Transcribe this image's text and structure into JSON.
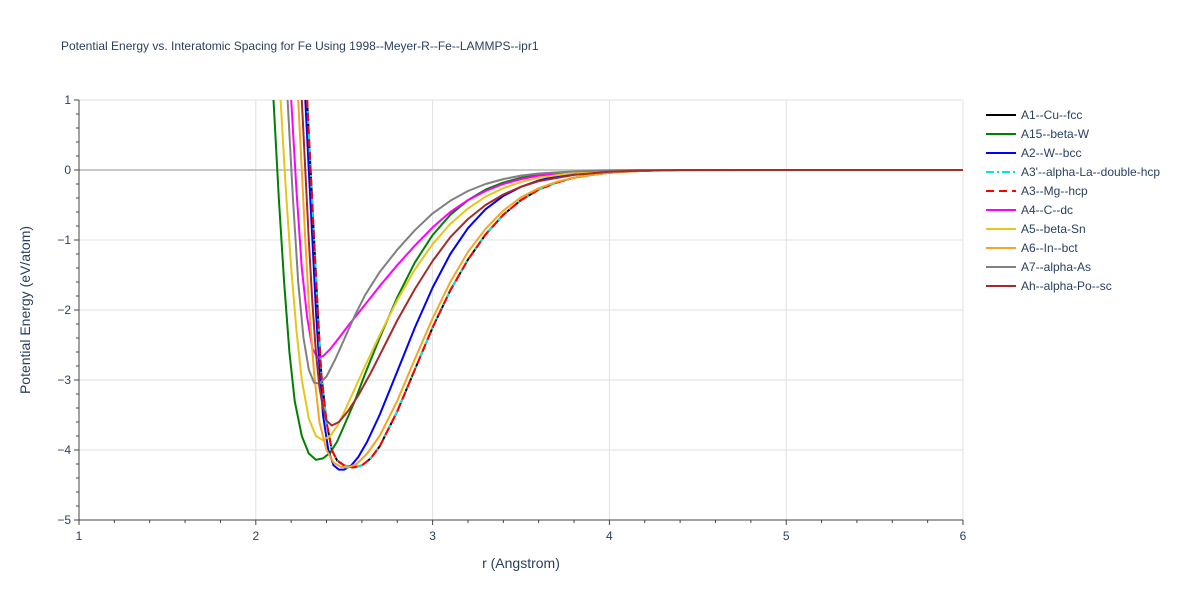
{
  "chart_data": {
    "type": "line",
    "title": "Potential Energy vs. Interatomic Spacing for Fe Using 1998--Meyer-R--Fe--LAMMPS--ipr1",
    "xlabel": "r (Angstrom)",
    "ylabel": "Potential Energy (eV/atom)",
    "xlim": [
      1,
      6
    ],
    "ylim": [
      -5,
      1
    ],
    "xticks": [
      1,
      2,
      3,
      4,
      5,
      6
    ],
    "yticks": [
      1,
      0,
      -1,
      -2,
      -3,
      -4,
      -5
    ],
    "xtick_labels": [
      "1",
      "2",
      "3",
      "4",
      "5",
      "6"
    ],
    "ytick_labels": [
      "1",
      "0",
      "−1",
      "−2",
      "−3",
      "−4",
      "−5"
    ],
    "grid": true,
    "legend_position": "right",
    "series": [
      {
        "name": "A1--Cu--fcc",
        "color": "#000000",
        "dash": "solid",
        "x": [
          2.29,
          2.31,
          2.33,
          2.35,
          2.37,
          2.4,
          2.43,
          2.46,
          2.5,
          2.55,
          2.6,
          2.65,
          2.7,
          2.8,
          2.9,
          3.0,
          3.1,
          3.2,
          3.3,
          3.4,
          3.5,
          3.6,
          3.7,
          3.8,
          3.9,
          4.0,
          4.1,
          4.2,
          4.3,
          4.4,
          4.5,
          5.0,
          6.0
        ],
        "y": [
          1.0,
          0.0,
          -1.0,
          -2.0,
          -2.9,
          -3.6,
          -4.0,
          -4.15,
          -4.22,
          -4.25,
          -4.22,
          -4.12,
          -3.95,
          -3.45,
          -2.85,
          -2.25,
          -1.72,
          -1.28,
          -0.92,
          -0.64,
          -0.43,
          -0.28,
          -0.18,
          -0.11,
          -0.07,
          -0.04,
          -0.02,
          -0.01,
          -0.004,
          0.0,
          0.0,
          0.0,
          0.0
        ]
      },
      {
        "name": "A15--beta-W",
        "color": "#008000",
        "dash": "solid",
        "x": [
          2.1,
          2.13,
          2.16,
          2.19,
          2.22,
          2.26,
          2.3,
          2.34,
          2.38,
          2.42,
          2.46,
          2.5,
          2.56,
          2.62,
          2.7,
          2.8,
          2.9,
          3.0,
          3.1,
          3.2,
          3.3,
          3.4,
          3.5,
          3.6,
          3.8,
          4.0,
          4.2,
          4.4,
          5.0,
          6.0
        ],
        "y": [
          1.0,
          -0.4,
          -1.6,
          -2.6,
          -3.3,
          -3.8,
          -4.05,
          -4.14,
          -4.12,
          -4.04,
          -3.88,
          -3.65,
          -3.3,
          -2.9,
          -2.4,
          -1.82,
          -1.32,
          -0.93,
          -0.64,
          -0.43,
          -0.28,
          -0.18,
          -0.11,
          -0.07,
          -0.025,
          -0.008,
          -0.002,
          0.0,
          0.0,
          0.0
        ]
      },
      {
        "name": "A2--W--bcc",
        "color": "#0000ff",
        "dash": "solid",
        "x": [
          2.28,
          2.3,
          2.32,
          2.34,
          2.36,
          2.38,
          2.41,
          2.44,
          2.47,
          2.5,
          2.54,
          2.58,
          2.63,
          2.7,
          2.8,
          2.9,
          3.0,
          3.1,
          3.2,
          3.3,
          3.4,
          3.5,
          3.6,
          3.7,
          3.8,
          3.9,
          4.0,
          4.2,
          4.4,
          5.0,
          6.0
        ],
        "y": [
          1.0,
          0.0,
          -1.0,
          -2.0,
          -2.8,
          -3.5,
          -4.0,
          -4.22,
          -4.28,
          -4.28,
          -4.22,
          -4.1,
          -3.88,
          -3.5,
          -2.88,
          -2.25,
          -1.68,
          -1.2,
          -0.83,
          -0.56,
          -0.37,
          -0.24,
          -0.15,
          -0.09,
          -0.055,
          -0.033,
          -0.02,
          -0.006,
          0.0,
          0.0,
          0.0
        ]
      },
      {
        "name": "A3'--alpha-La--double-hcp",
        "color": "#00e5e5",
        "dash": "dashdot",
        "x": [
          2.29,
          2.31,
          2.33,
          2.35,
          2.37,
          2.4,
          2.43,
          2.46,
          2.5,
          2.55,
          2.6,
          2.65,
          2.7,
          2.8,
          2.9,
          3.0,
          3.1,
          3.2,
          3.3,
          3.4,
          3.5,
          3.6,
          3.7,
          3.8,
          3.9,
          4.0,
          4.1,
          4.2,
          4.3,
          4.4,
          4.5,
          5.0,
          6.0
        ],
        "y": [
          1.0,
          0.0,
          -1.0,
          -2.0,
          -2.9,
          -3.6,
          -4.0,
          -4.15,
          -4.22,
          -4.25,
          -4.22,
          -4.12,
          -3.95,
          -3.45,
          -2.85,
          -2.25,
          -1.72,
          -1.28,
          -0.92,
          -0.64,
          -0.43,
          -0.28,
          -0.18,
          -0.11,
          -0.07,
          -0.04,
          -0.02,
          -0.01,
          -0.004,
          0.0,
          0.0,
          0.0,
          0.0
        ]
      },
      {
        "name": "A3--Mg--hcp",
        "color": "#ff0000",
        "dash": "dash",
        "x": [
          2.29,
          2.31,
          2.33,
          2.35,
          2.37,
          2.4,
          2.43,
          2.46,
          2.5,
          2.55,
          2.6,
          2.65,
          2.7,
          2.8,
          2.9,
          3.0,
          3.1,
          3.2,
          3.3,
          3.4,
          3.5,
          3.6,
          3.7,
          3.8,
          3.9,
          4.0,
          4.1,
          4.2,
          4.3,
          4.4,
          4.5,
          5.0,
          6.0
        ],
        "y": [
          1.0,
          0.0,
          -1.0,
          -2.0,
          -2.9,
          -3.6,
          -4.0,
          -4.15,
          -4.22,
          -4.25,
          -4.22,
          -4.12,
          -3.95,
          -3.45,
          -2.85,
          -2.25,
          -1.72,
          -1.28,
          -0.92,
          -0.64,
          -0.43,
          -0.28,
          -0.18,
          -0.11,
          -0.07,
          -0.04,
          -0.02,
          -0.01,
          -0.004,
          0.0,
          0.0,
          0.0,
          0.0
        ]
      },
      {
        "name": "A4--C--dc",
        "color": "#ff00ff",
        "dash": "solid",
        "x": [
          2.2,
          2.23,
          2.26,
          2.29,
          2.32,
          2.35,
          2.38,
          2.42,
          2.47,
          2.53,
          2.6,
          2.7,
          2.8,
          2.9,
          3.0,
          3.1,
          3.2,
          3.3,
          3.4,
          3.5,
          3.6,
          3.8,
          4.0,
          4.2,
          4.4,
          5.0,
          6.0
        ],
        "y": [
          1.0,
          -0.3,
          -1.4,
          -2.1,
          -2.55,
          -2.68,
          -2.66,
          -2.56,
          -2.4,
          -2.2,
          -1.98,
          -1.66,
          -1.36,
          -1.08,
          -0.82,
          -0.6,
          -0.43,
          -0.3,
          -0.2,
          -0.13,
          -0.08,
          -0.03,
          -0.01,
          -0.003,
          0.0,
          0.0,
          0.0
        ]
      },
      {
        "name": "A5--beta-Sn",
        "color": "#e6c619",
        "dash": "solid",
        "x": [
          2.14,
          2.17,
          2.2,
          2.23,
          2.26,
          2.3,
          2.34,
          2.38,
          2.42,
          2.46,
          2.5,
          2.55,
          2.6,
          2.7,
          2.8,
          2.9,
          3.0,
          3.1,
          3.2,
          3.3,
          3.4,
          3.5,
          3.6,
          3.8,
          4.0,
          4.2,
          4.4,
          5.0,
          6.0
        ],
        "y": [
          1.0,
          -0.3,
          -1.4,
          -2.3,
          -3.0,
          -3.55,
          -3.8,
          -3.86,
          -3.8,
          -3.66,
          -3.46,
          -3.18,
          -2.9,
          -2.36,
          -1.86,
          -1.42,
          -1.06,
          -0.77,
          -0.55,
          -0.38,
          -0.26,
          -0.17,
          -0.11,
          -0.04,
          -0.014,
          -0.004,
          0.0,
          0.0,
          0.0
        ]
      },
      {
        "name": "A6--In--bct",
        "color": "#f5a623",
        "dash": "solid",
        "x": [
          2.24,
          2.26,
          2.28,
          2.3,
          2.33,
          2.36,
          2.4,
          2.44,
          2.48,
          2.52,
          2.57,
          2.63,
          2.7,
          2.8,
          2.9,
          3.0,
          3.1,
          3.2,
          3.3,
          3.4,
          3.5,
          3.6,
          3.7,
          3.8,
          3.9,
          4.0,
          4.2,
          4.4,
          5.0,
          6.0
        ],
        "y": [
          1.0,
          0.0,
          -1.0,
          -1.9,
          -2.9,
          -3.6,
          -4.0,
          -4.18,
          -4.24,
          -4.25,
          -4.2,
          -4.05,
          -3.8,
          -3.3,
          -2.7,
          -2.12,
          -1.6,
          -1.17,
          -0.84,
          -0.58,
          -0.39,
          -0.26,
          -0.17,
          -0.11,
          -0.07,
          -0.04,
          -0.012,
          -0.003,
          0.0,
          0.0
        ]
      },
      {
        "name": "A7--alpha-As",
        "color": "#808080",
        "dash": "solid",
        "x": [
          2.18,
          2.21,
          2.24,
          2.27,
          2.3,
          2.33,
          2.36,
          2.4,
          2.45,
          2.5,
          2.56,
          2.62,
          2.7,
          2.8,
          2.9,
          3.0,
          3.1,
          3.2,
          3.3,
          3.4,
          3.5,
          3.6,
          3.8,
          4.0,
          4.2,
          4.4,
          5.0,
          6.0
        ],
        "y": [
          1.0,
          -0.4,
          -1.6,
          -2.4,
          -2.85,
          -3.04,
          -3.05,
          -2.95,
          -2.7,
          -2.42,
          -2.08,
          -1.78,
          -1.46,
          -1.14,
          -0.86,
          -0.62,
          -0.44,
          -0.3,
          -0.2,
          -0.13,
          -0.08,
          -0.05,
          -0.02,
          -0.006,
          -0.002,
          0.0,
          0.0,
          0.0
        ]
      },
      {
        "name": "Ah--alpha-Po--sc",
        "color": "#a52a2a",
        "dash": "solid",
        "x": [
          2.26,
          2.28,
          2.3,
          2.32,
          2.34,
          2.36,
          2.38,
          2.4,
          2.43,
          2.47,
          2.52,
          2.58,
          2.65,
          2.72,
          2.8,
          2.9,
          3.0,
          3.1,
          3.2,
          3.3,
          3.4,
          3.5,
          3.6,
          3.8,
          4.0,
          4.2,
          4.4,
          5.0,
          6.0
        ],
        "y": [
          1.0,
          0.0,
          -1.0,
          -1.9,
          -2.6,
          -3.1,
          -3.4,
          -3.58,
          -3.65,
          -3.6,
          -3.45,
          -3.22,
          -2.9,
          -2.55,
          -2.15,
          -1.7,
          -1.3,
          -0.96,
          -0.7,
          -0.5,
          -0.35,
          -0.24,
          -0.16,
          -0.07,
          -0.025,
          -0.008,
          -0.002,
          0.0,
          0.0
        ]
      }
    ]
  }
}
